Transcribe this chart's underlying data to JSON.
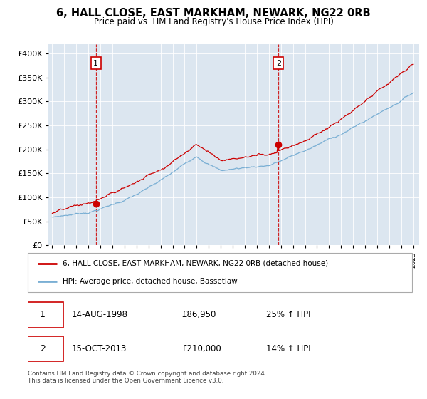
{
  "title": "6, HALL CLOSE, EAST MARKHAM, NEWARK, NG22 0RB",
  "subtitle": "Price paid vs. HM Land Registry's House Price Index (HPI)",
  "background_color": "#dce6f0",
  "plot_bg_color": "#dce6f0",
  "red_line_color": "#cc0000",
  "blue_line_color": "#7aafd4",
  "annotation1_date": "14-AUG-1998",
  "annotation1_price": "£86,950",
  "annotation1_hpi": "25% ↑ HPI",
  "annotation2_date": "15-OCT-2013",
  "annotation2_price": "£210,000",
  "annotation2_hpi": "14% ↑ HPI",
  "legend_line1": "6, HALL CLOSE, EAST MARKHAM, NEWARK, NG22 0RB (detached house)",
  "legend_line2": "HPI: Average price, detached house, Bassetlaw",
  "footnote": "Contains HM Land Registry data © Crown copyright and database right 2024.\nThis data is licensed under the Open Government Licence v3.0.",
  "ylim": [
    0,
    420000
  ],
  "yticks": [
    0,
    50000,
    100000,
    150000,
    200000,
    250000,
    300000,
    350000,
    400000
  ],
  "year_start": 1995,
  "year_end": 2025,
  "purchase1_year": 1998.62,
  "purchase1_value": 86950,
  "purchase2_year": 2013.79,
  "purchase2_value": 210000
}
